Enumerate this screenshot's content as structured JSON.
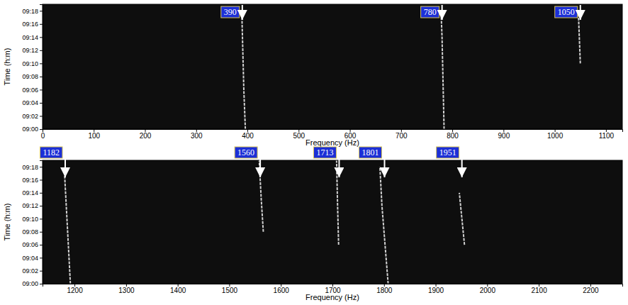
{
  "chart_data": [
    {
      "type": "spectrogram",
      "x_label": "Frequency (Hz)",
      "y_label": "Time (h:m)",
      "xlim": [
        0,
        1132
      ],
      "xticks": [
        0,
        100,
        200,
        300,
        400,
        500,
        600,
        700,
        800,
        900,
        1000,
        1100
      ],
      "ylim": [
        540,
        559
      ],
      "yticks": [
        {
          "value": 540,
          "label": "09:00"
        },
        {
          "value": 542,
          "label": "09:02"
        },
        {
          "value": 544,
          "label": "09:04"
        },
        {
          "value": 546,
          "label": "09:06"
        },
        {
          "value": 548,
          "label": "09:08"
        },
        {
          "value": 550,
          "label": "09:10"
        },
        {
          "value": 552,
          "label": "09:12"
        },
        {
          "value": 554,
          "label": "09:14"
        },
        {
          "value": 556,
          "label": "09:16"
        },
        {
          "value": 558,
          "label": "09:18"
        }
      ],
      "series": [
        {
          "color": "#e6e6e6",
          "x": [
            396,
            393,
            391,
            389
          ],
          "values": [
            540,
            546,
            552,
            558
          ]
        },
        {
          "color": "#e6e6e6",
          "x": [
            784,
            782,
            780,
            778
          ],
          "values": [
            540,
            547,
            554,
            558
          ]
        },
        {
          "color": "#e6e6e6",
          "x": [
            1050,
            1048,
            1046
          ],
          "values": [
            550,
            554,
            558
          ]
        }
      ],
      "annotations": [
        {
          "text": "390",
          "x": 390
        },
        {
          "text": "780",
          "x": 780
        },
        {
          "text": "1050",
          "x": 1050
        }
      ]
    },
    {
      "type": "spectrogram",
      "x_label": "Frequency (Hz)",
      "y_label": "Time (h:m)",
      "xlim": [
        1138,
        2262
      ],
      "xticks": [
        1200,
        1300,
        1400,
        1500,
        1600,
        1700,
        1800,
        1900,
        2000,
        2100,
        2200
      ],
      "ylim": [
        540,
        559
      ],
      "yticks": [
        {
          "value": 540,
          "label": "09:00"
        },
        {
          "value": 542,
          "label": "09:02"
        },
        {
          "value": 544,
          "label": "09:04"
        },
        {
          "value": 546,
          "label": "09:06"
        },
        {
          "value": 548,
          "label": "09:08"
        },
        {
          "value": 550,
          "label": "09:10"
        },
        {
          "value": 552,
          "label": "09:12"
        },
        {
          "value": 554,
          "label": "09:14"
        },
        {
          "value": 556,
          "label": "09:16"
        },
        {
          "value": 558,
          "label": "09:18"
        }
      ],
      "series": [
        {
          "color": "#e6e6e6",
          "x": [
            1192,
            1188,
            1184,
            1180
          ],
          "values": [
            540,
            546,
            552,
            558
          ]
        },
        {
          "color": "#e6e6e6",
          "x": [
            1566,
            1562,
            1558
          ],
          "values": [
            548,
            553,
            559
          ]
        },
        {
          "color": "#e6e6e6",
          "x": [
            1712,
            1710,
            1708
          ],
          "values": [
            546,
            552,
            559
          ]
        },
        {
          "color": "#e6e6e6",
          "x": [
            1808,
            1802,
            1796,
            1792
          ],
          "values": [
            540,
            546,
            552,
            558
          ]
        },
        {
          "color": "#e6e6e6",
          "x": [
            1956,
            1951,
            1946
          ],
          "values": [
            546,
            550,
            554
          ]
        }
      ],
      "annotations": [
        {
          "text": "1182",
          "x": 1182
        },
        {
          "text": "1560",
          "x": 1560
        },
        {
          "text": "1713",
          "x": 1713
        },
        {
          "text": "1801",
          "x": 1801
        },
        {
          "text": "1951",
          "x": 1951
        }
      ]
    }
  ]
}
